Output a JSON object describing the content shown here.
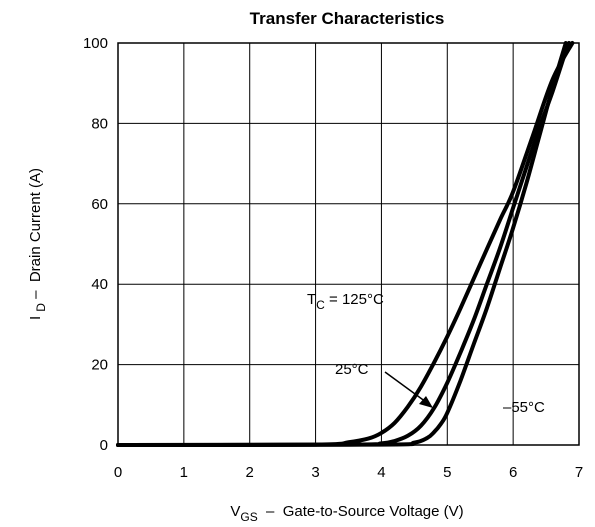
{
  "chart_data": {
    "type": "line",
    "title": "Transfer Characteristics",
    "xlabel": "V_GS  –  Gate-to-Source Voltage (V)",
    "xlabel_main": "V",
    "xlabel_sub": "GS",
    "xlabel_rest": "  –  Gate-to-Source Voltage (V)",
    "ylabel": "I_D – Drain Current (A)",
    "ylabel_main": "I ",
    "ylabel_sub": "D",
    "ylabel_rest": " –  Drain Current (A)",
    "xlim": [
      0,
      7
    ],
    "ylim": [
      0,
      100
    ],
    "xticks": [
      0,
      1,
      2,
      3,
      4,
      5,
      6,
      7
    ],
    "yticks": [
      0,
      20,
      40,
      60,
      80,
      100
    ],
    "grid": true,
    "legend": "none",
    "series": [
      {
        "name": "T_C = 125°C",
        "x": [
          0,
          3.0,
          3.5,
          3.8,
          4.0,
          4.2,
          4.4,
          4.6,
          4.8,
          5.0,
          5.2,
          5.5,
          5.8,
          6.0,
          6.3,
          6.6,
          6.9
        ],
        "y": [
          0,
          0.1,
          0.7,
          1.6,
          3.0,
          5.5,
          9.5,
          14.5,
          20.5,
          27,
          34,
          45,
          56,
          63,
          77,
          91,
          100
        ]
      },
      {
        "name": "25°C",
        "x": [
          0,
          3.5,
          4.0,
          4.2,
          4.4,
          4.6,
          4.8,
          5.0,
          5.2,
          5.4,
          5.6,
          5.8,
          6.0,
          6.2,
          6.4,
          6.6,
          6.8,
          6.85
        ],
        "y": [
          0,
          0.1,
          0.4,
          1.0,
          2.3,
          4.8,
          9.2,
          15.5,
          23,
          31,
          40,
          49,
          59,
          69,
          79,
          88,
          98,
          100
        ]
      },
      {
        "name": "–55°C",
        "x": [
          0,
          4.0,
          4.5,
          4.7,
          4.8,
          4.9,
          5.0,
          5.2,
          5.4,
          5.6,
          5.8,
          6.0,
          6.2,
          6.4,
          6.6,
          6.8
        ],
        "y": [
          0,
          0.1,
          0.6,
          1.8,
          3.2,
          5.2,
          8,
          16,
          25,
          34,
          44,
          54,
          65,
          77,
          89,
          100
        ]
      }
    ],
    "annotations": {
      "tc125_main": "T",
      "tc125_sub": "C",
      "tc125_rest": " = 125°C",
      "label_25": "25°C",
      "label_m55": "–55°C"
    }
  }
}
